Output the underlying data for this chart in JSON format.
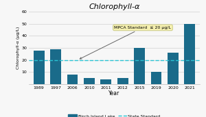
{
  "title": "Chlorophyll-α",
  "xlabel": "Year",
  "ylabel": "Chlorophyll-α (μg/L)",
  "categories": [
    "1989",
    "1997",
    "2006",
    "2010",
    "2011",
    "2012",
    "2015",
    "2019",
    "2020",
    "2021"
  ],
  "values": [
    28,
    29,
    8,
    5,
    4,
    5,
    30,
    10,
    26,
    50
  ],
  "bar_color": "#1a6b8a",
  "state_standard": 20,
  "state_standard_color": "#29c4d4",
  "ylim": [
    0,
    60
  ],
  "yticks": [
    10,
    20,
    30,
    40,
    50,
    60
  ],
  "annotation_text": "MPCA Standard  ≤ 20 μg/L",
  "annotation_bg": "#f5f0b0",
  "background_color": "#f7f7f7",
  "legend_bar_label": "Birch Island Lake",
  "legend_line_label": "State Standard"
}
